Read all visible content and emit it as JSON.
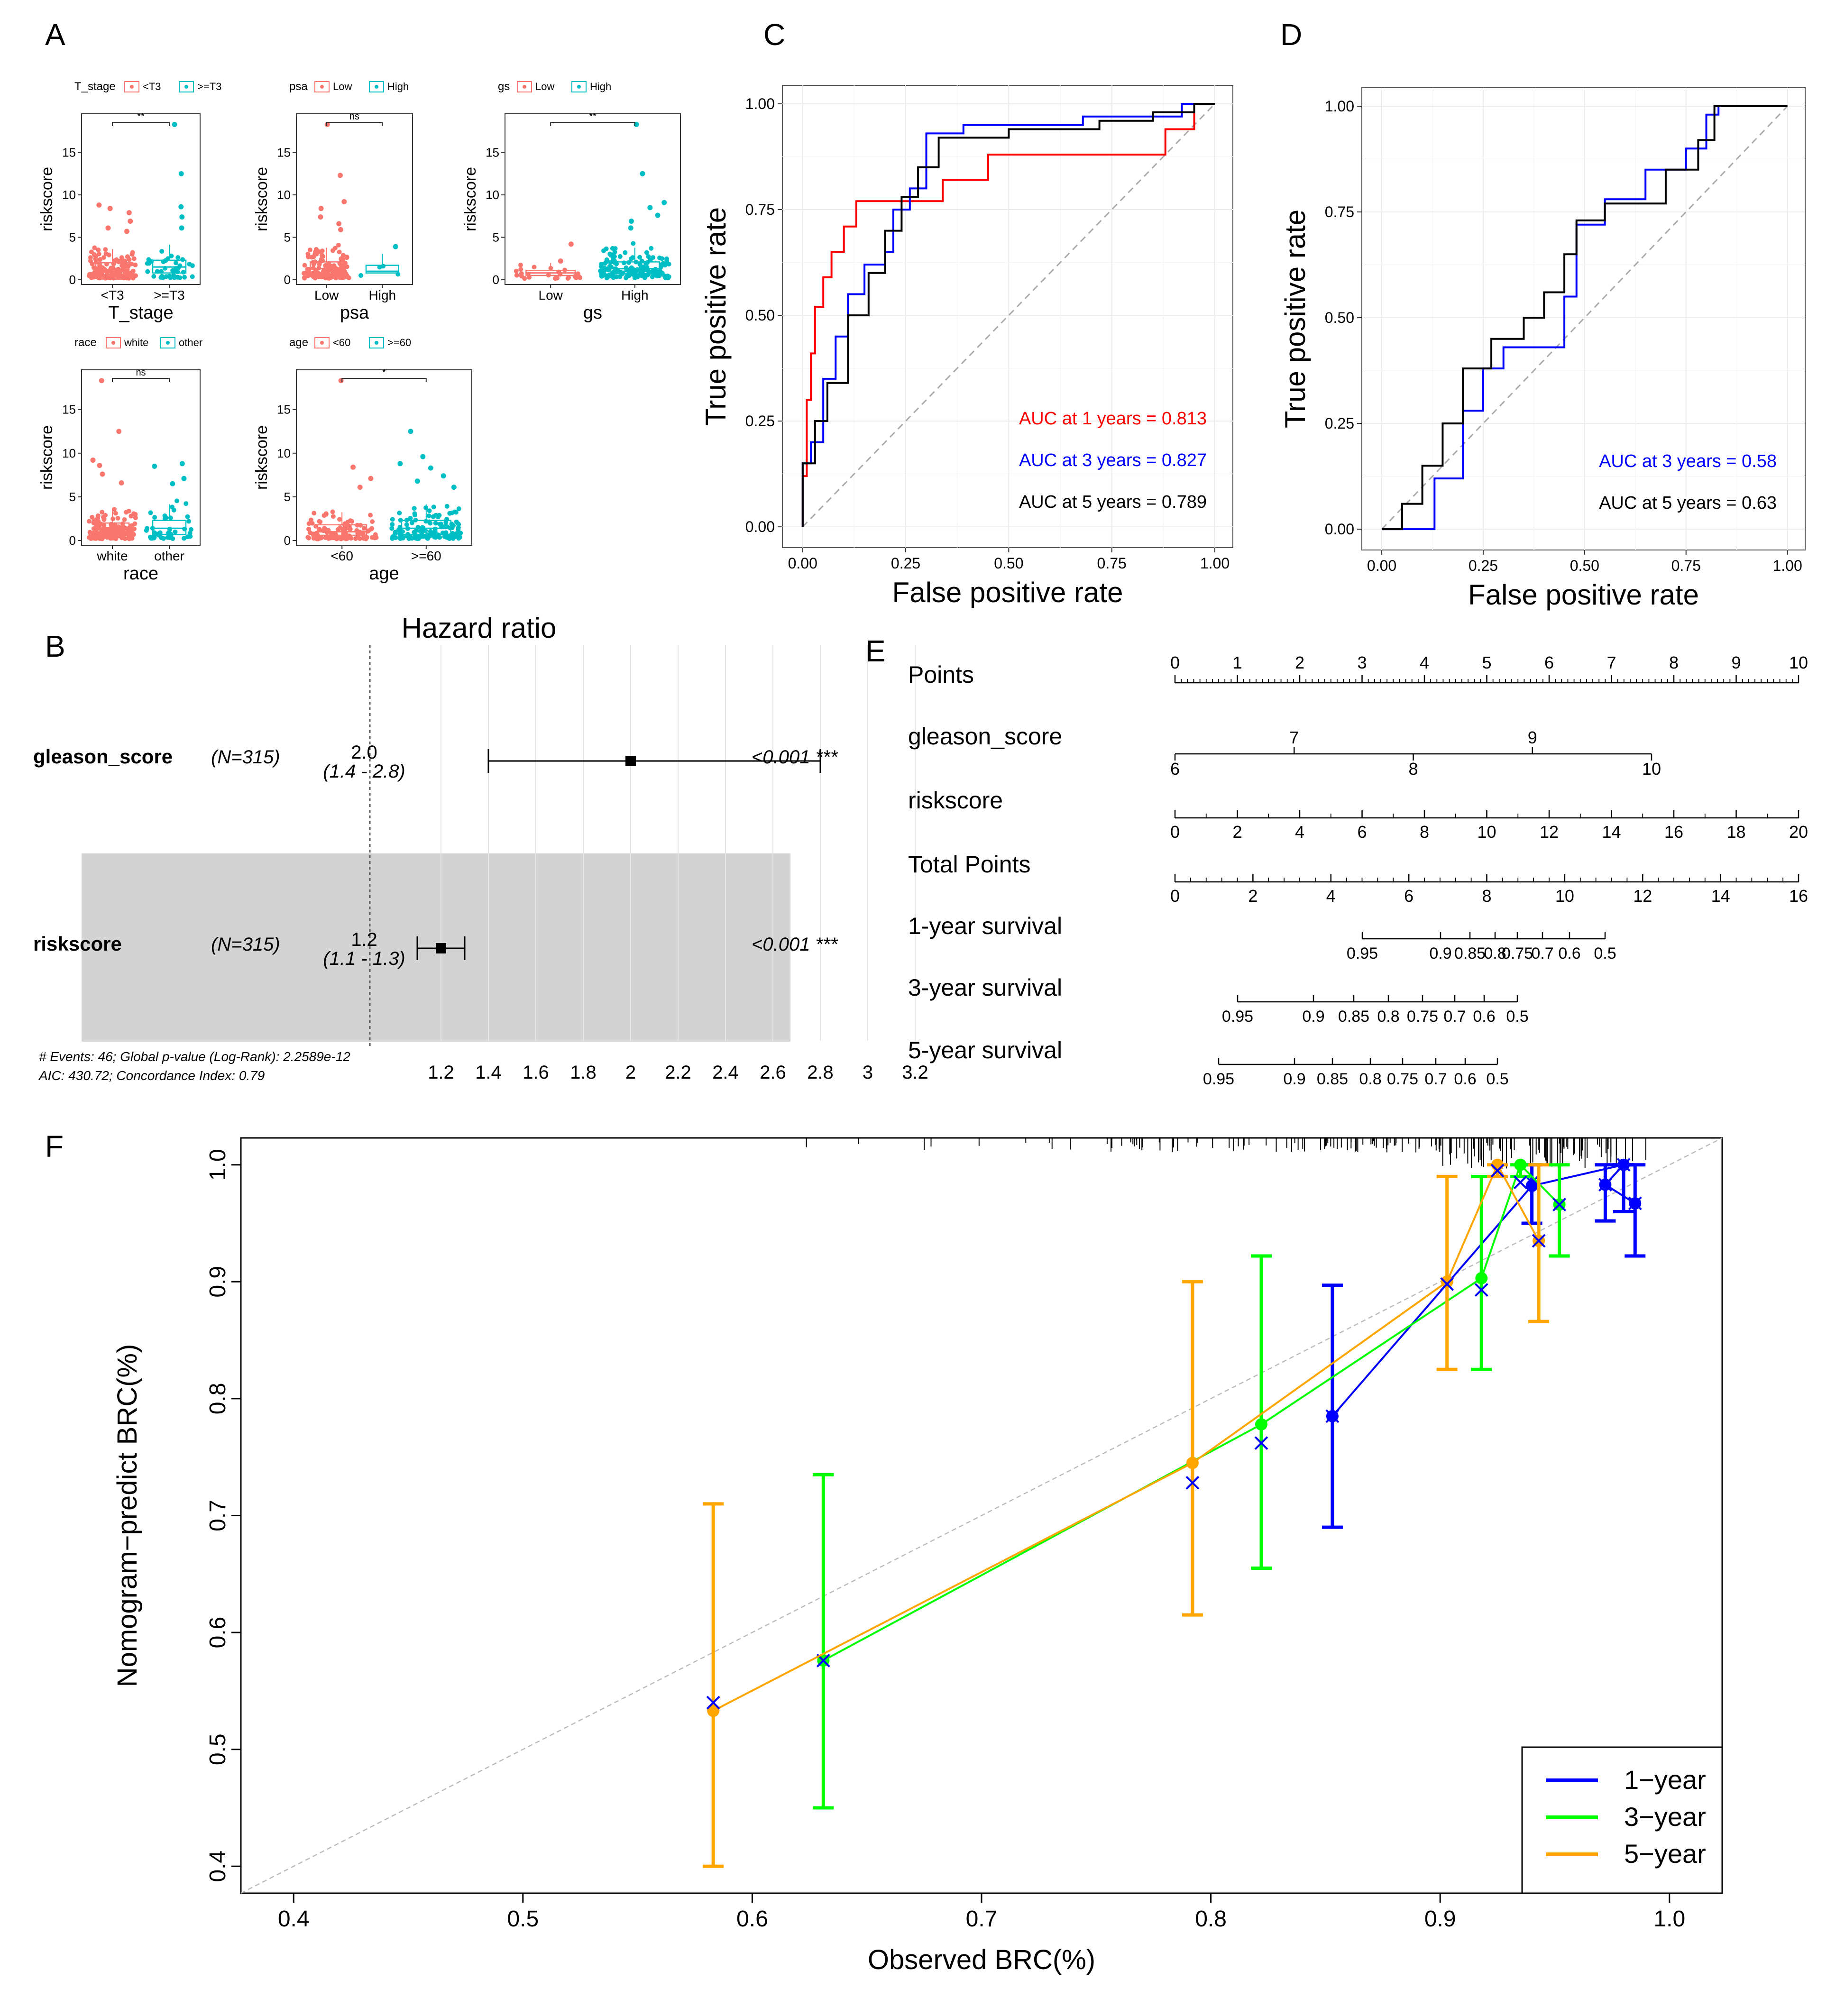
{
  "panel_labels": {
    "A": "A",
    "B": "B",
    "C": "C",
    "D": "D",
    "E": "E",
    "F": "F"
  },
  "colors": {
    "red": "#f8766d",
    "teal": "#00bfc4",
    "roc_red": "#ff0000",
    "roc_blue": "#0000ff",
    "roc_black": "#000000",
    "cal_blue": "#0000ff",
    "cal_green": "#00ff00",
    "cal_orange": "#ffa500",
    "grey": "#999999"
  },
  "chart_data": [
    {
      "id": "A",
      "type": "box",
      "ylabel": "riskscore",
      "yticks": [
        "0",
        "5",
        "10",
        "15"
      ],
      "ylim": [
        0,
        19
      ],
      "subplots": [
        {
          "var": "T_stage",
          "legend_title": "T_stage",
          "groups": [
            "<T3",
            ">=T3"
          ],
          "xlabel": "T_stage",
          "sig": "**",
          "medians": [
            1.2,
            1.5
          ],
          "q1": [
            0.6,
            0.8
          ],
          "q3": [
            2.0,
            2.3
          ],
          "n": [
            200,
            40
          ],
          "outliers": [
            [
              8.8,
              8.4,
              7.9,
              6.9,
              6.1,
              5.7
            ],
            [
              18.3,
              12.5,
              8.6,
              7.4,
              6.1
            ]
          ]
        },
        {
          "var": "psa",
          "legend_title": "psa",
          "groups": [
            "Low",
            "High"
          ],
          "xlabel": "psa",
          "sig": "ns",
          "medians": [
            1.3,
            1.0
          ],
          "q1": [
            0.6,
            0.8
          ],
          "q3": [
            2.1,
            1.7
          ],
          "n": [
            260,
            4
          ],
          "outliers": [
            [
              18.3,
              12.3,
              9.2,
              8.4,
              7.4,
              6.6,
              5.9
            ],
            [
              3.9
            ]
          ]
        },
        {
          "var": "gs",
          "legend_title": "gs",
          "groups": [
            "Low",
            "High"
          ],
          "xlabel": "gs",
          "sig": "**",
          "medians": [
            0.8,
            1.3
          ],
          "q1": [
            0.5,
            0.7
          ],
          "q3": [
            1.1,
            2.1
          ],
          "n": [
            25,
            240
          ],
          "outliers": [
            [
              4.2,
              2.2
            ],
            [
              18.3,
              12.5,
              9.1,
              8.5,
              7.6,
              6.9,
              6.1
            ]
          ]
        },
        {
          "var": "race",
          "legend_title": "race",
          "groups": [
            "white",
            "other"
          ],
          "xlabel": "race",
          "sig": "ns",
          "medians": [
            1.2,
            1.4
          ],
          "q1": [
            0.6,
            0.7
          ],
          "q3": [
            2.0,
            2.3
          ],
          "n": [
            210,
            45
          ],
          "outliers": [
            [
              18.3,
              12.5,
              9.2,
              8.6,
              7.6,
              6.6
            ],
            [
              8.8,
              8.5,
              7.1,
              6.5
            ]
          ]
        },
        {
          "var": "age",
          "legend_title": "age",
          "groups": [
            "<60",
            ">=60"
          ],
          "xlabel": "age",
          "sig": "*",
          "medians": [
            1.0,
            1.4
          ],
          "q1": [
            0.6,
            0.7
          ],
          "q3": [
            1.8,
            2.3
          ],
          "n": [
            110,
            180
          ],
          "outliers": [
            [
              18.3,
              8.4,
              7.1,
              6.1
            ],
            [
              12.5,
              9.6,
              8.8,
              8.3,
              7.4,
              6.8,
              6.1
            ]
          ]
        }
      ]
    },
    {
      "id": "C",
      "type": "line",
      "xlabel": "False positive rate",
      "ylabel": "True positive rate",
      "xticks": [
        "0.00",
        "0.25",
        "0.50",
        "0.75",
        "1.00"
      ],
      "yticks": [
        "0.00",
        "0.25",
        "0.50",
        "0.75",
        "1.00"
      ],
      "xlim": [
        0,
        1
      ],
      "ylim": [
        0,
        1
      ],
      "series": [
        {
          "name": "AUC at 1 years = 0.813",
          "color": "#ff0000",
          "x": [
            0,
            0,
            0.01,
            0.01,
            0.02,
            0.02,
            0.03,
            0.03,
            0.05,
            0.05,
            0.07,
            0.07,
            0.1,
            0.1,
            0.13,
            0.13,
            0.16,
            0.16,
            0.24,
            0.24,
            0.34,
            0.34,
            0.45,
            0.45,
            0.62,
            0.62,
            0.88,
            0.88,
            0.95,
            0.95,
            1
          ],
          "y": [
            0,
            0.12,
            0.12,
            0.3,
            0.3,
            0.41,
            0.41,
            0.52,
            0.52,
            0.59,
            0.59,
            0.65,
            0.65,
            0.71,
            0.71,
            0.77,
            0.77,
            0.77,
            0.77,
            0.77,
            0.77,
            0.82,
            0.82,
            0.88,
            0.88,
            0.88,
            0.88,
            0.94,
            0.94,
            1,
            1
          ]
        },
        {
          "name": "AUC at 3 years = 0.827",
          "color": "#0000ff",
          "x": [
            0,
            0,
            0.02,
            0.02,
            0.05,
            0.05,
            0.08,
            0.08,
            0.11,
            0.11,
            0.15,
            0.15,
            0.2,
            0.2,
            0.22,
            0.22,
            0.26,
            0.26,
            0.3,
            0.3,
            0.39,
            0.39,
            0.5,
            0.5,
            0.68,
            0.68,
            0.85,
            0.85,
            0.92,
            0.92,
            1
          ],
          "y": [
            0,
            0.15,
            0.15,
            0.2,
            0.2,
            0.35,
            0.35,
            0.45,
            0.45,
            0.55,
            0.55,
            0.62,
            0.62,
            0.65,
            0.65,
            0.75,
            0.75,
            0.8,
            0.8,
            0.93,
            0.93,
            0.95,
            0.95,
            0.95,
            0.95,
            0.97,
            0.97,
            0.97,
            0.97,
            1,
            1
          ]
        },
        {
          "name": "AUC at 5 years = 0.789",
          "color": "#000000",
          "x": [
            0,
            0,
            0.03,
            0.03,
            0.06,
            0.06,
            0.11,
            0.11,
            0.16,
            0.16,
            0.2,
            0.2,
            0.24,
            0.24,
            0.28,
            0.28,
            0.33,
            0.33,
            0.39,
            0.39,
            0.5,
            0.5,
            0.72,
            0.72,
            0.85,
            0.85,
            0.95,
            0.95,
            1
          ],
          "y": [
            0,
            0.15,
            0.15,
            0.25,
            0.25,
            0.34,
            0.34,
            0.5,
            0.5,
            0.6,
            0.6,
            0.7,
            0.7,
            0.78,
            0.78,
            0.85,
            0.85,
            0.92,
            0.92,
            0.92,
            0.92,
            0.94,
            0.94,
            0.96,
            0.96,
            0.98,
            0.98,
            1,
            1
          ]
        }
      ],
      "labels": [
        "AUC at 1 years = 0.813",
        "AUC at 3 years = 0.827",
        "AUC at 5 years = 0.789"
      ]
    },
    {
      "id": "D",
      "type": "line",
      "xlabel": "False positive rate",
      "ylabel": "True positive rate",
      "xticks": [
        "0.00",
        "0.25",
        "0.50",
        "0.75",
        "1.00"
      ],
      "yticks": [
        "0.00",
        "0.25",
        "0.50",
        "0.75",
        "1.00"
      ],
      "xlim": [
        0,
        1
      ],
      "ylim": [
        0,
        1
      ],
      "series": [
        {
          "name": "AUC at 3 years = 0.58",
          "color": "#0000ff",
          "x": [
            0,
            0.13,
            0.13,
            0.2,
            0.2,
            0.25,
            0.25,
            0.3,
            0.3,
            0.45,
            0.45,
            0.48,
            0.48,
            0.55,
            0.55,
            0.65,
            0.65,
            0.75,
            0.75,
            0.8,
            0.8,
            0.83,
            0.83,
            1
          ],
          "y": [
            0,
            0,
            0.12,
            0.12,
            0.28,
            0.28,
            0.38,
            0.38,
            0.43,
            0.43,
            0.55,
            0.55,
            0.72,
            0.72,
            0.78,
            0.78,
            0.85,
            0.85,
            0.9,
            0.9,
            0.98,
            0.98,
            1,
            1
          ]
        },
        {
          "name": "AUC at 5 years = 0.63",
          "color": "#000000",
          "x": [
            0,
            0.05,
            0.05,
            0.1,
            0.1,
            0.15,
            0.15,
            0.2,
            0.2,
            0.27,
            0.27,
            0.35,
            0.35,
            0.4,
            0.4,
            0.45,
            0.45,
            0.48,
            0.48,
            0.55,
            0.55,
            0.7,
            0.7,
            0.78,
            0.78,
            0.82,
            0.82,
            1
          ],
          "y": [
            0,
            0,
            0.06,
            0.06,
            0.15,
            0.15,
            0.25,
            0.25,
            0.38,
            0.38,
            0.45,
            0.45,
            0.5,
            0.5,
            0.56,
            0.56,
            0.65,
            0.65,
            0.73,
            0.73,
            0.77,
            0.77,
            0.85,
            0.85,
            0.92,
            0.92,
            1,
            1
          ]
        }
      ],
      "labels": [
        "AUC at 3 years = 0.58",
        "AUC at 5 years = 0.63"
      ]
    },
    {
      "id": "B",
      "type": "forest",
      "title": "Hazard ratio",
      "rows": [
        {
          "variable": "gleason_score",
          "n": "(N=315)",
          "hr": "2.0",
          "ci": "(1.4 - 2.8)",
          "p": "<0.001 ***",
          "hr_value": 2.0,
          "ci_low": 1.4,
          "ci_high": 2.8
        },
        {
          "variable": "riskscore",
          "n": "(N=315)",
          "hr": "1.2",
          "ci": "(1.1 - 1.3)",
          "p": "<0.001 ***",
          "hr_value": 1.2,
          "ci_low": 1.1,
          "ci_high": 1.3
        }
      ],
      "xticks": [
        "1.2",
        "1.4",
        "1.6",
        "1.8",
        "2",
        "2.2",
        "2.4",
        "2.6",
        "2.8",
        "3",
        "3.2"
      ],
      "footnote": [
        "# Events: 46; Global p-value (Log-Rank): 2.2589e-12",
        "AIC: 430.72; Concordance Index: 0.79"
      ]
    },
    {
      "id": "E",
      "type": "nomogram",
      "rows": [
        {
          "label": "Points",
          "ticks": [
            "0",
            "1",
            "2",
            "3",
            "4",
            "5",
            "6",
            "7",
            "8",
            "9",
            "10"
          ]
        },
        {
          "label": "gleason_score",
          "top_ticks": [
            "7",
            "9"
          ],
          "bottom_ticks": [
            "6",
            "8",
            "10"
          ]
        },
        {
          "label": "riskscore",
          "ticks": [
            "0",
            "2",
            "4",
            "6",
            "8",
            "10",
            "12",
            "14",
            "16",
            "18",
            "20"
          ]
        },
        {
          "label": "Total Points",
          "ticks": [
            "0",
            "2",
            "4",
            "6",
            "8",
            "10",
            "12",
            "14",
            "16"
          ]
        },
        {
          "label": "1-year survival",
          "ticks": [
            "0.95",
            "0.9",
            "0.85",
            "0.8",
            "0.75",
            "0.7",
            "0.6",
            "0.5"
          ]
        },
        {
          "label": "3-year survival",
          "ticks": [
            "0.95",
            "0.9",
            "0.85",
            "0.8",
            "0.75",
            "0.7",
            "0.6",
            "0.5"
          ]
        },
        {
          "label": "5-year survival",
          "ticks": [
            "0.95",
            "0.9",
            "0.85",
            "0.8",
            "0.75",
            "0.7",
            "0.6",
            "0.5"
          ]
        }
      ]
    },
    {
      "id": "F",
      "type": "scatter",
      "xlabel": "Observed BRC(%)",
      "ylabel": "Nomogram−predict BRC(%)",
      "xticks": [
        "0.4",
        "0.5",
        "0.6",
        "0.7",
        "0.8",
        "0.9",
        "1.0"
      ],
      "yticks": [
        "0.4",
        "0.5",
        "0.6",
        "0.7",
        "0.8",
        "0.9",
        "1.0"
      ],
      "xlim": [
        0.377,
        1.023
      ],
      "ylim": [
        0.377,
        1.023
      ],
      "legend": [
        "1−year",
        "3−year",
        "5−year"
      ],
      "series": [
        {
          "name": "1−year",
          "color": "#0000ff",
          "x": [
            0.853,
            0.94,
            0.98,
            0.972,
            0.985
          ],
          "y": [
            0.785,
            0.982,
            1.0,
            0.983,
            0.967
          ],
          "lo": [
            0.69,
            0.95,
            0.96,
            0.952,
            0.922
          ],
          "hi": [
            0.897,
            1.0,
            1.0,
            1.0,
            1.0
          ],
          "xmark_y": [
            0.785,
            0.985,
            1.0,
            0.983,
            0.967
          ]
        },
        {
          "name": "3−year",
          "color": "#00ff00",
          "x": [
            0.631,
            0.822,
            0.918,
            0.935,
            0.952
          ],
          "y": [
            0.576,
            0.778,
            0.903,
            1.0,
            0.966
          ],
          "lo": [
            0.45,
            0.655,
            0.825,
            0.99,
            0.922
          ],
          "hi": [
            0.735,
            0.922,
            0.99,
            1.0,
            1.0
          ],
          "xmark_y": [
            0.576,
            0.762,
            0.893,
            0.985,
            0.966
          ]
        },
        {
          "name": "5−year",
          "color": "#ffa500",
          "x": [
            0.583,
            0.792,
            0.903,
            0.925,
            0.943
          ],
          "y": [
            0.533,
            0.745,
            0.9,
            1.0,
            0.935
          ],
          "lo": [
            0.4,
            0.615,
            0.825,
            0.99,
            0.866
          ],
          "hi": [
            0.71,
            0.9,
            0.99,
            1.0,
            1.0
          ],
          "xmark_y": [
            0.54,
            0.728,
            0.898,
            0.995,
            0.935
          ]
        }
      ]
    }
  ]
}
